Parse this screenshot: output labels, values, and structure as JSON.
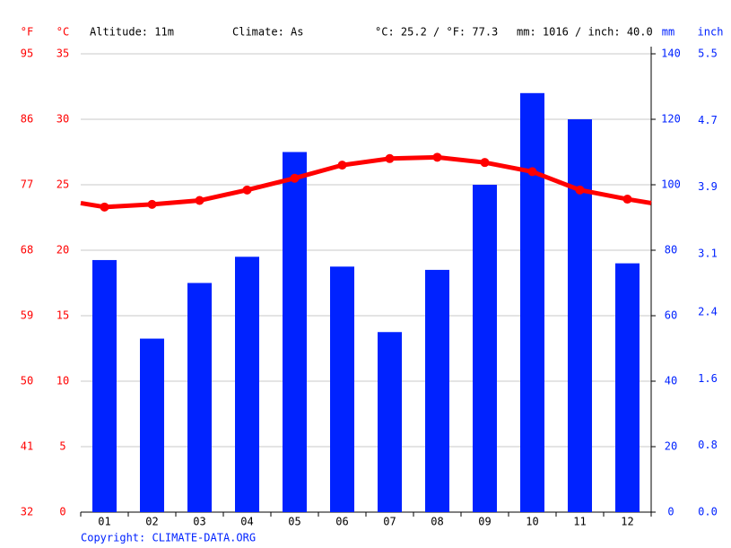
{
  "chart_data": {
    "type": "combo",
    "header": {
      "altitude": "Altitude: 11m",
      "climate": "Climate: As",
      "avg_temp": "°C: 25.2 / °F: 77.3",
      "precip": "mm: 1016 / inch: 40.0"
    },
    "axis_labels": {
      "f": "°F",
      "c": "°C",
      "mm": "mm",
      "inch": "inch"
    },
    "copyright": "Copyright: CLIMATE-DATA.ORG",
    "categories": [
      "01",
      "02",
      "03",
      "04",
      "05",
      "06",
      "07",
      "08",
      "09",
      "10",
      "11",
      "12"
    ],
    "series": [
      {
        "type": "bar",
        "axis": "y2",
        "color": "#0022ff",
        "values": [
          77,
          53,
          70,
          78,
          110,
          75,
          55,
          74,
          100,
          128,
          120,
          76
        ]
      },
      {
        "type": "line",
        "color": "#ff0000",
        "values": [
          23.3,
          23.5,
          23.8,
          24.6,
          25.5,
          26.5,
          27.0,
          27.1,
          26.7,
          26.0,
          24.6,
          23.9
        ]
      }
    ],
    "ylim": [
      0,
      35
    ],
    "yticks": [
      0,
      5,
      10,
      15,
      20,
      25,
      30,
      35
    ],
    "flim": [
      32,
      95
    ],
    "fticks": [
      32,
      41,
      50,
      59,
      68,
      77,
      86,
      95
    ],
    "y2lim": [
      0,
      140
    ],
    "y2ticks": [
      0,
      20,
      40,
      60,
      80,
      100,
      120,
      140
    ],
    "inchlim": [
      0,
      5.5
    ],
    "inchticks": [
      {
        "value": 0,
        "label": "0.0"
      },
      0.8,
      1.6,
      2.4,
      3.1,
      3.9,
      4.7,
      5.5
    ],
    "grid": true
  }
}
